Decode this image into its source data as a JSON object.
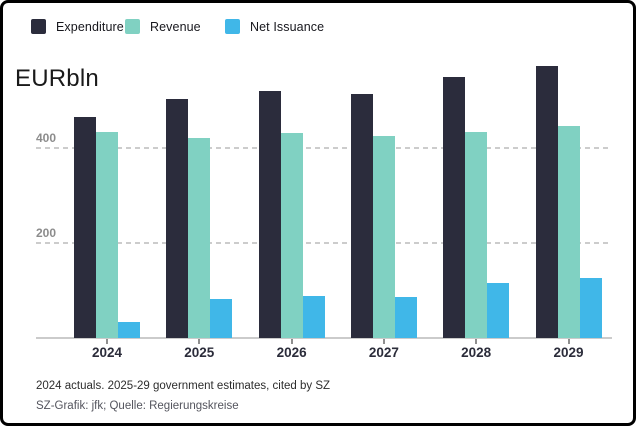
{
  "title": "EURbln",
  "legend": [
    {
      "label": "Expenditure",
      "color": "#2b2c3c"
    },
    {
      "label": "Revenue",
      "color": "#80d1c2"
    },
    {
      "label": "Net Issuance",
      "color": "#40b7e8"
    }
  ],
  "footer": {
    "line1": "2024 actuals. 2025-29 government estimates, cited by SZ",
    "line2": "SZ-Grafik: jfk; Quelle: Regierungskreise"
  },
  "chart_data": {
    "type": "bar",
    "title": "EURbln",
    "unit": "EUR billion",
    "categories": [
      "2024",
      "2025",
      "2026",
      "2027",
      "2028",
      "2029"
    ],
    "series": [
      {
        "name": "Expenditure",
        "color": "#2b2c3c",
        "values": [
          466,
          503,
          520,
          513,
          549,
          572
        ]
      },
      {
        "name": "Revenue",
        "color": "#80d1c2",
        "values": [
          433,
          421,
          431,
          426,
          434,
          446
        ]
      },
      {
        "name": "Net Issuance",
        "color": "#40b7e8",
        "values": [
          33,
          82,
          89,
          87,
          116,
          126
        ]
      }
    ],
    "yticks": [
      200,
      400
    ],
    "ylim": [
      0,
      600
    ],
    "grid": "horizontal-dashed",
    "legend_position": "top-left"
  },
  "axis": {
    "ytick_labels": [
      "200",
      "400"
    ]
  }
}
